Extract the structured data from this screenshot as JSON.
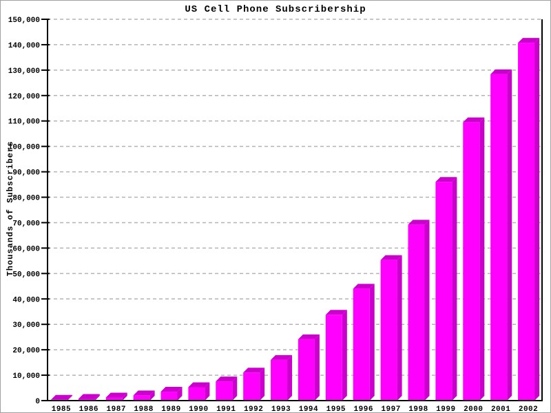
{
  "window": {
    "title": "US Cell Phone Subscribership"
  },
  "chart_data": {
    "type": "bar",
    "title": "US Cell Phone Subscribership",
    "ylabel": "Thousands of Subscribers",
    "xlabel": "",
    "categories": [
      "1985",
      "1986",
      "1987",
      "1988",
      "1989",
      "1990",
      "1991",
      "1992",
      "1993",
      "1994",
      "1995",
      "1996",
      "1997",
      "1998",
      "1999",
      "2000",
      "2001",
      "2002"
    ],
    "values": [
      340,
      682,
      1231,
      2069,
      3509,
      5283,
      7557,
      11033,
      16009,
      24134,
      33786,
      44043,
      55312,
      69209,
      86047,
      109478,
      128375,
      140767
    ],
    "ylim": [
      0,
      150000
    ],
    "ytick_interval": 10000,
    "y_tick_labels": [
      "0",
      "10,000",
      "20,000",
      "30,000",
      "40,000",
      "50,000",
      "60,000",
      "70,000",
      "80,000",
      "90,000",
      "100,000",
      "110,000",
      "120,000",
      "130,000",
      "140,000",
      "150,000"
    ],
    "grid": "horizontal-dashed",
    "legend": "none",
    "bar_style": "3d-extruded",
    "colors": {
      "bar_front": "#FF00FF",
      "bar_shade": "#CC00CC",
      "grid_line": "#B3B3B3",
      "axis": "#000000",
      "background": "#FFFFFF",
      "frame_border": "#A0A0A0"
    }
  }
}
